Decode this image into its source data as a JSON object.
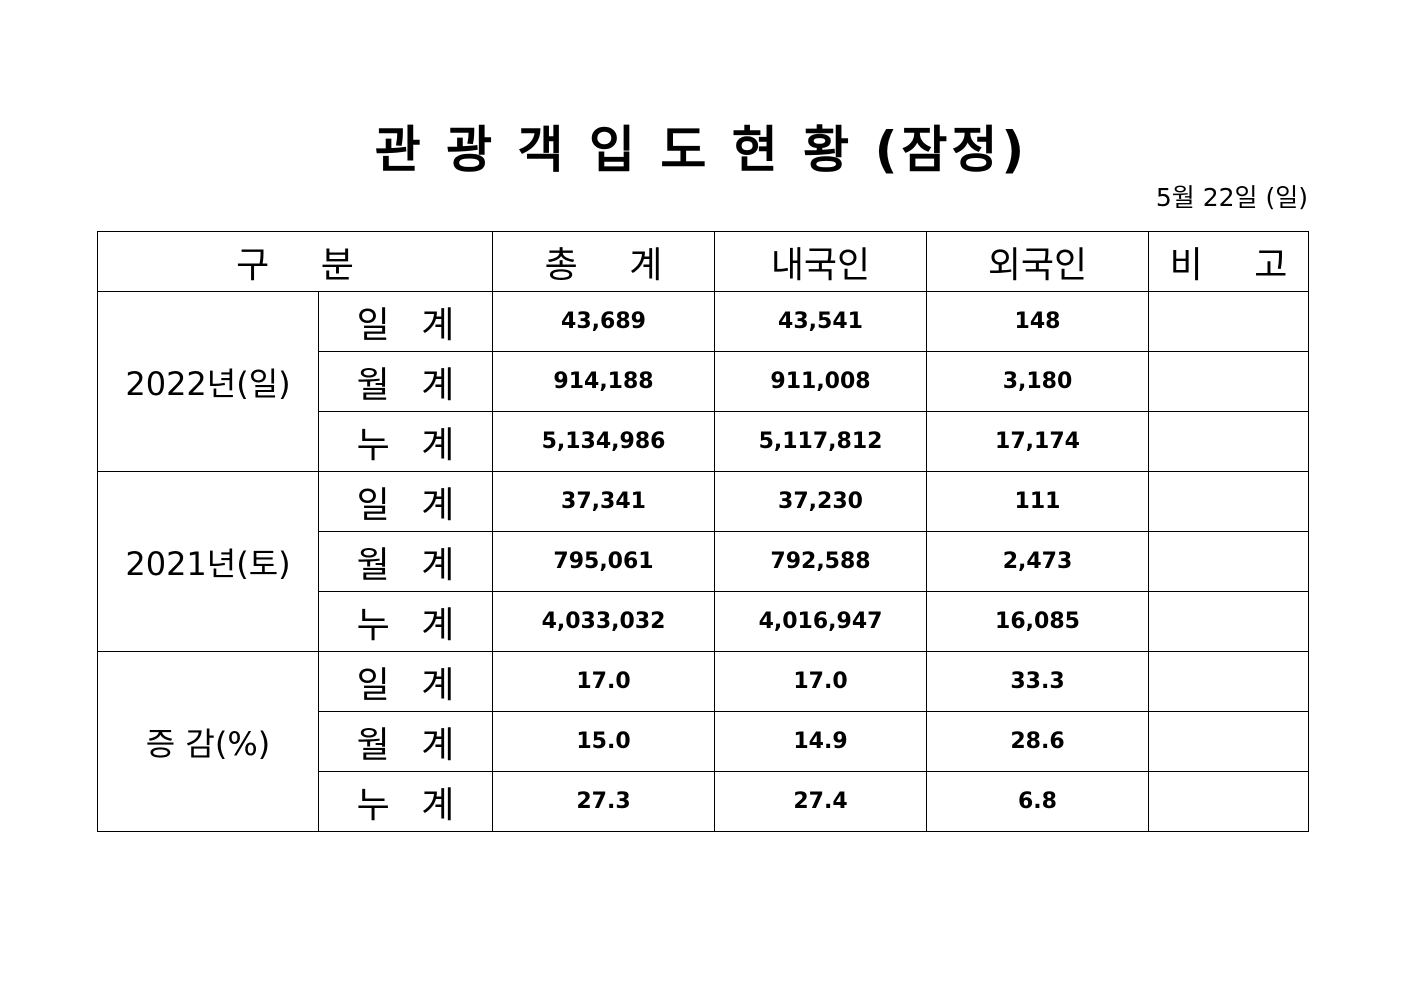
{
  "title": "관 광 객 입 도 현 황 (잠정)",
  "date": "5월 22일 (일)",
  "table": {
    "header": [
      "구 분",
      "총 계",
      "내국인",
      "외국인",
      "비 고"
    ],
    "groups": [
      {
        "label": "2022년(일)",
        "rows": [
          {
            "label": "일 계",
            "values": [
              "43,689",
              "43,541",
              "148"
            ]
          },
          {
            "label": "월 계",
            "values": [
              "914,188",
              "911,008",
              "3,180"
            ]
          },
          {
            "label": "누 계",
            "values": [
              "5,134,986",
              "5,117,812",
              "17,174"
            ]
          }
        ]
      },
      {
        "label": "2021년(토)",
        "rows": [
          {
            "label": "일 계",
            "values": [
              "37,341",
              "37,230",
              "111"
            ]
          },
          {
            "label": "월 계",
            "values": [
              "795,061",
              "792,588",
              "2,473"
            ]
          },
          {
            "label": "누 계",
            "values": [
              "4,033,032",
              "4,016,947",
              "16,085"
            ]
          }
        ]
      },
      {
        "label": "증 감(%)",
        "rows": [
          {
            "label": "일 계",
            "values": [
              "17.0",
              "17.0",
              "33.3"
            ]
          },
          {
            "label": "월 계",
            "values": [
              "15.0",
              "14.9",
              "28.6"
            ]
          },
          {
            "label": "누 계",
            "values": [
              "27.3",
              "27.4",
              "6.8"
            ]
          }
        ]
      }
    ]
  }
}
